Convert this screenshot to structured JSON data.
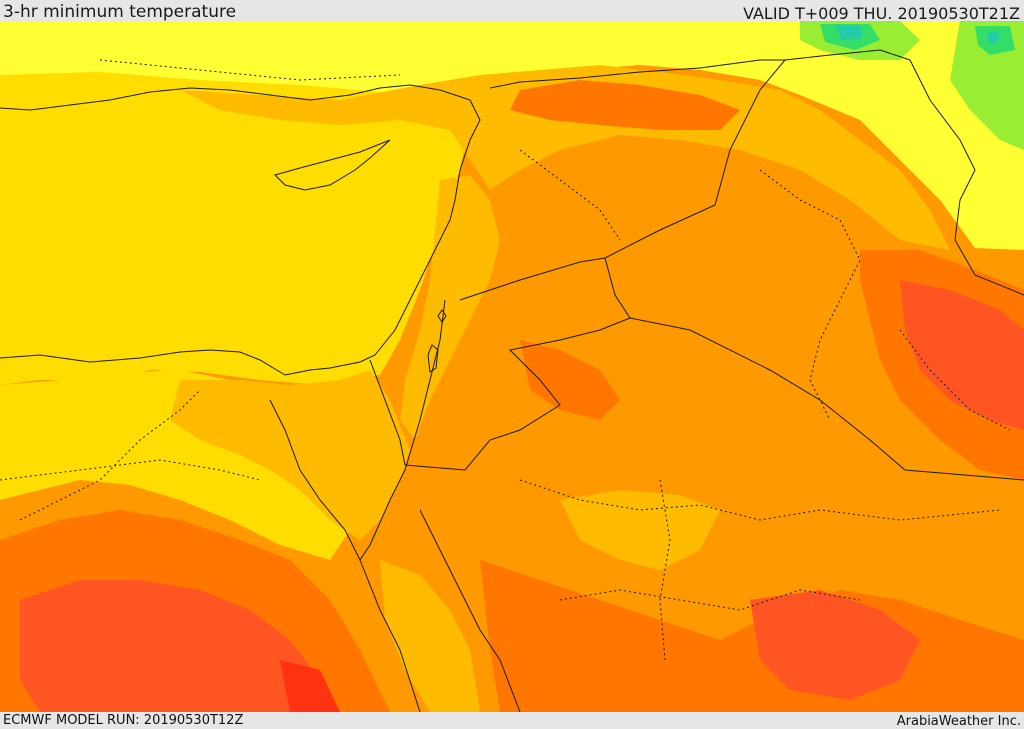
{
  "header": {
    "title": "3-hr minimum temperature",
    "valid": "VALID T+009 THU. 20190530T21Z"
  },
  "footer": {
    "model_run": "ECMWF MODEL RUN: 20190530T12Z",
    "credit": "ArabiaWeather Inc."
  },
  "map": {
    "colors": {
      "lightest_yellow": "#ffff33",
      "yellow": "#ffdd00",
      "gold": "#ffbb00",
      "orange": "#ff9900",
      "dark_orange": "#ff7700",
      "red_orange": "#ff5522",
      "red": "#ff3311",
      "light_green": "#99ee33",
      "green": "#33dd66",
      "teal": "#22ccaa",
      "border": "#1a1a1a"
    }
  }
}
